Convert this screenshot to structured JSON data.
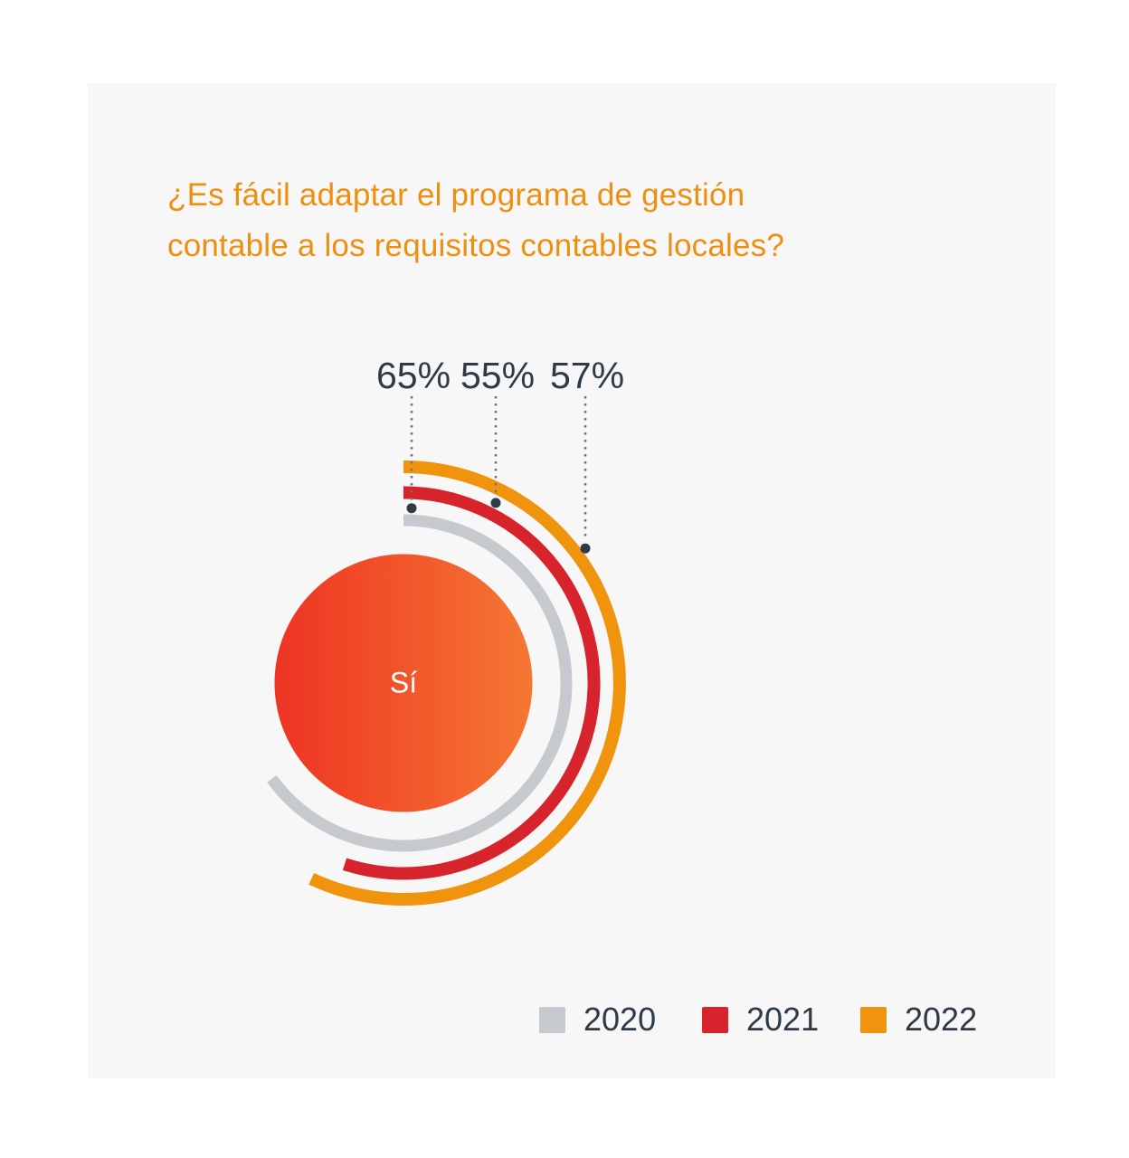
{
  "header": {
    "title_line1": "¿Es fácil adaptar el programa de gestión",
    "title_line2": "contable a los requisitos contables locales?",
    "title_full": "¿Es fácil adaptar el programa de gestión contable a los requisitos contables locales?"
  },
  "chart_data": {
    "type": "radial-bar",
    "title": "¿Es fácil adaptar el programa de gestión contable a los requisitos contables locales?",
    "center_label": "Sí",
    "unit": "%",
    "value_range": [
      0,
      100
    ],
    "arc_start": "top",
    "arc_direction": "clockwise",
    "legend_position": "bottom-right",
    "series": [
      {
        "name": "2020",
        "value": 65,
        "label": "65%",
        "color": "#c6cace",
        "ring": "inner"
      },
      {
        "name": "2021",
        "value": 55,
        "label": "55%",
        "color": "#d7232c",
        "ring": "middle"
      },
      {
        "name": "2022",
        "value": 57,
        "label": "57%",
        "color": "#f0930d",
        "ring": "outer"
      }
    ]
  },
  "colors": {
    "page_bg": "#ffffff",
    "panel_bg": "#f7f7f7",
    "title_text": "#ef8f10",
    "value_text": "#2e3b47",
    "legend_text": "#2e3b47",
    "leader_line": "#6a737d",
    "leader_dot": "#2f3c48",
    "center_gradient_start": "#ee3423",
    "center_gradient_end": "#f57733",
    "center_text": "#ffffff"
  }
}
